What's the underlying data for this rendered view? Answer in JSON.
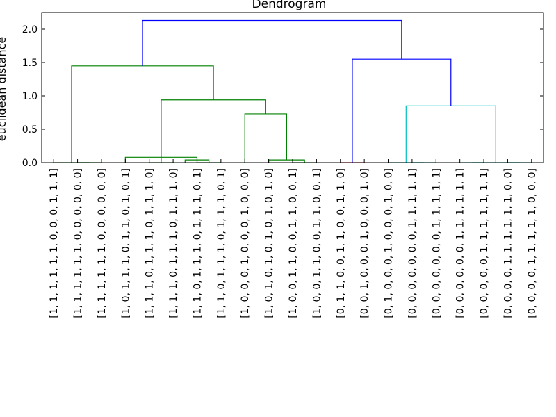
{
  "chart_data": {
    "type": "dendrogram",
    "title": "Dendrogram",
    "xlabel": "",
    "ylabel": "euclidean distance",
    "ylim": [
      0,
      2.25
    ],
    "yticks": [
      0.0,
      0.5,
      1.0,
      1.5,
      2.0
    ],
    "ytick_labels": [
      "0.0",
      "0.5",
      "1.0",
      "1.5",
      "2.0"
    ],
    "grid": false,
    "leaves": [
      "[1, 1, 1, 1, 1, 1, 0, 0, 0, 1, 1, 1]",
      "[1, 1, 1, 1, 1, 1, 0, 0, 0, 0, 0, 0]",
      "[1, 1, 1, 1, 1, 1, 0, 0, 0, 0, 0, 0]",
      "[1, 0, 1, 1, 1, 0, 1, 1, 0, 1, 0, 1]",
      "[1, 1, 1, 0, 1, 1, 1, 0, 1, 1, 1, 0]",
      "[1, 1, 1, 0, 1, 1, 1, 0, 1, 1, 1, 0]",
      "[1, 1, 0, 1, 1, 1, 0, 1, 1, 1, 0, 1]",
      "[1, 1, 0, 1, 1, 1, 0, 1, 1, 1, 0, 1]",
      "[1, 0, 0, 0, 1, 0, 0, 0, 1, 0, 0, 0]",
      "[1, 0, 1, 0, 1, 0, 1, 0, 1, 0, 1, 0]",
      "[1, 0, 0, 1, 1, 0, 0, 1, 1, 0, 0, 1]",
      "[1, 0, 0, 1, 1, 0, 0, 1, 1, 0, 0, 1]",
      "[0, 1, 1, 0, 0, 1, 1, 0, 0, 1, 1, 0]",
      "[0, 0, 1, 0, 0, 0, 1, 0, 0, 0, 1, 0]",
      "[0, 1, 0, 0, 0, 1, 0, 0, 0, 1, 0, 0]",
      "[0, 0, 0, 0, 0, 0, 0, 1, 1, 1, 1, 1]",
      "[0, 0, 0, 0, 0, 0, 0, 1, 1, 1, 1, 1]",
      "[0, 0, 0, 0, 0, 0, 1, 1, 1, 1, 1, 1]",
      "[0, 0, 0, 0, 0, 1, 1, 1, 1, 1, 1, 1]",
      "[0, 0, 0, 0, 1, 1, 1, 1, 1, 1, 0, 0]",
      "[0, 0, 0, 0, 1, 1, 1, 1, 1, 0, 0, 0]"
    ],
    "links": [
      {
        "left": 1,
        "right": 2,
        "height": 0.0,
        "color": "#008000"
      },
      {
        "left": 4,
        "right": 5,
        "height": 0.0,
        "color": "#008000"
      },
      {
        "left": 6,
        "right": 7,
        "height": 0.0,
        "color": "#008000"
      },
      {
        "left": 5.5,
        "right": 6.5,
        "height": 0.04,
        "color": "#008000"
      },
      {
        "left": 3,
        "right": 6,
        "height": 0.08,
        "color": "#008000"
      },
      {
        "left": 10,
        "right": 11,
        "height": 0.0,
        "color": "#008000"
      },
      {
        "left": 9,
        "right": 10.5,
        "height": 0.04,
        "color": "#008000"
      },
      {
        "left": 8,
        "right": 9.75,
        "height": 0.73,
        "color": "#008000"
      },
      {
        "left": 4.5,
        "right": 8.875,
        "height": 0.94,
        "color": "#008000"
      },
      {
        "left": 0,
        "right": 1.5,
        "height": 0.0,
        "color": "#008000"
      },
      {
        "left": 0.75,
        "right": 6.6875,
        "height": 1.45,
        "color": "#008000"
      },
      {
        "left": 12,
        "right": 13,
        "height": 0.0,
        "color": "#ff0000"
      },
      {
        "left": 15,
        "right": 16,
        "height": 0.0,
        "color": "#00bfbf"
      },
      {
        "left": 14,
        "right": 15.5,
        "height": 0.0,
        "color": "#00bfbf"
      },
      {
        "left": 17,
        "right": 18,
        "height": 0.0,
        "color": "#00bfbf"
      },
      {
        "left": 19,
        "right": 20,
        "height": 0.0,
        "color": "#00bfbf"
      },
      {
        "left": 17.5,
        "right": 19.5,
        "height": 0.0,
        "color": "#00bfbf"
      },
      {
        "left": 14.75,
        "right": 18.5,
        "height": 0.85,
        "color": "#00bfbf"
      },
      {
        "left": 12.5,
        "right": 16.625,
        "height": 1.55,
        "color": "#0000ff"
      },
      {
        "left": 3.71875,
        "right": 14.5625,
        "height": 2.13,
        "color": "#0000ff"
      }
    ],
    "colors": {
      "cluster_a": "#008000",
      "cluster_b": "#00bfbf",
      "cluster_c": "#ff0000",
      "above_threshold": "#0000ff",
      "axes": "#000000"
    }
  }
}
